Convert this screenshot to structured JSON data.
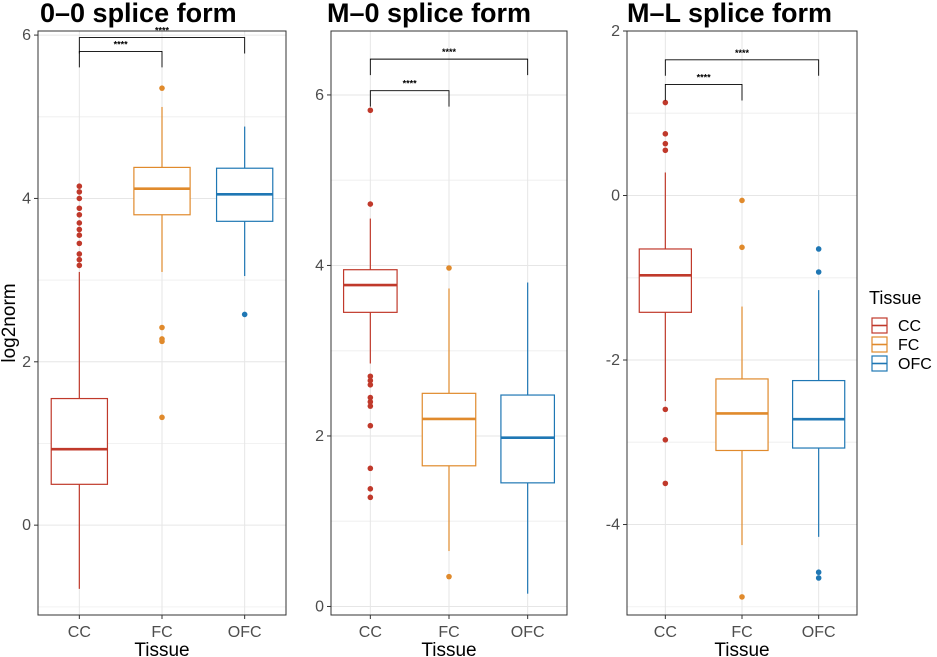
{
  "chart_data": [
    {
      "type": "box",
      "title": "0–0 splice form",
      "xlabel": "Tissue",
      "ylabel": "log2norm",
      "categories": [
        "CC",
        "FC",
        "OFC"
      ],
      "ylim": [
        -1.1,
        6.05
      ],
      "yticks": [
        0,
        2,
        4,
        6
      ],
      "grid": true,
      "boxes": [
        {
          "group": "CC",
          "whisker_low": -0.78,
          "q1": 0.5,
          "median": 0.93,
          "q3": 1.55,
          "whisker_high": 3.1,
          "outliers": [
            3.18,
            3.25,
            3.32,
            3.45,
            3.55,
            3.62,
            3.7,
            3.8,
            3.88,
            4.0,
            4.08,
            4.15
          ]
        },
        {
          "group": "FC",
          "whisker_low": 3.1,
          "q1": 3.8,
          "median": 4.12,
          "q3": 4.38,
          "whisker_high": 5.12,
          "outliers": [
            1.32,
            2.25,
            2.28,
            2.42,
            5.35
          ]
        },
        {
          "group": "OFC",
          "whisker_low": 3.05,
          "q1": 3.72,
          "median": 4.05,
          "q3": 4.37,
          "whisker_high": 4.88,
          "outliers": [
            2.58
          ]
        }
      ],
      "significance": [
        {
          "from": "CC",
          "to": "FC",
          "label": "****",
          "y": 5.8
        },
        {
          "from": "CC",
          "to": "OFC",
          "label": "****",
          "y": 5.97
        }
      ]
    },
    {
      "type": "box",
      "title": "M–0 splice form",
      "xlabel": "Tissue",
      "ylabel": "",
      "categories": [
        "CC",
        "FC",
        "OFC"
      ],
      "ylim": [
        -0.1,
        6.75
      ],
      "yticks": [
        0,
        2,
        4,
        6
      ],
      "grid": true,
      "boxes": [
        {
          "group": "CC",
          "whisker_low": 2.85,
          "q1": 3.45,
          "median": 3.77,
          "q3": 3.95,
          "whisker_high": 4.55,
          "outliers": [
            1.28,
            1.38,
            1.62,
            2.12,
            2.35,
            2.4,
            2.45,
            2.6,
            2.65,
            2.7,
            4.72,
            5.82
          ]
        },
        {
          "group": "FC",
          "whisker_low": 0.65,
          "q1": 1.65,
          "median": 2.2,
          "q3": 2.5,
          "whisker_high": 3.73,
          "outliers": [
            0.35,
            3.97
          ]
        },
        {
          "group": "OFC",
          "whisker_low": 0.15,
          "q1": 1.45,
          "median": 1.98,
          "q3": 2.48,
          "whisker_high": 3.8,
          "outliers": []
        }
      ],
      "significance": [
        {
          "from": "CC",
          "to": "FC",
          "label": "****",
          "y": 6.05
        },
        {
          "from": "CC",
          "to": "OFC",
          "label": "****",
          "y": 6.42
        }
      ]
    },
    {
      "type": "box",
      "title": "M–L splice form",
      "xlabel": "Tissue",
      "ylabel": "",
      "categories": [
        "CC",
        "FC",
        "OFC"
      ],
      "ylim": [
        -5.1,
        2.0
      ],
      "yticks": [
        -4,
        -2,
        0,
        2
      ],
      "grid": true,
      "boxes": [
        {
          "group": "CC",
          "whisker_low": -2.5,
          "q1": -1.42,
          "median": -0.97,
          "q3": -0.65,
          "whisker_high": 0.28,
          "outliers": [
            -3.5,
            -2.97,
            -2.6,
            0.55,
            0.63,
            0.75,
            1.13
          ]
        },
        {
          "group": "FC",
          "whisker_low": -4.25,
          "q1": -3.1,
          "median": -2.65,
          "q3": -2.23,
          "whisker_high": -1.35,
          "outliers": [
            -4.88,
            -0.63,
            -0.06
          ]
        },
        {
          "group": "OFC",
          "whisker_low": -4.15,
          "q1": -3.07,
          "median": -2.72,
          "q3": -2.25,
          "whisker_high": -1.15,
          "outliers": [
            -4.65,
            -4.58,
            -0.93,
            -0.65
          ]
        }
      ],
      "significance": [
        {
          "from": "CC",
          "to": "FC",
          "label": "****",
          "y": 1.35
        },
        {
          "from": "CC",
          "to": "OFC",
          "label": "****",
          "y": 1.65
        }
      ]
    }
  ],
  "legend": {
    "title": "Tissue",
    "items": [
      {
        "label": "CC",
        "color": "#c0392b"
      },
      {
        "label": "FC",
        "color": "#e08a2c"
      },
      {
        "label": "OFC",
        "color": "#1f77b4"
      }
    ]
  },
  "colors": {
    "CC": "#c0392b",
    "FC": "#e08a2c",
    "OFC": "#1f77b4"
  }
}
